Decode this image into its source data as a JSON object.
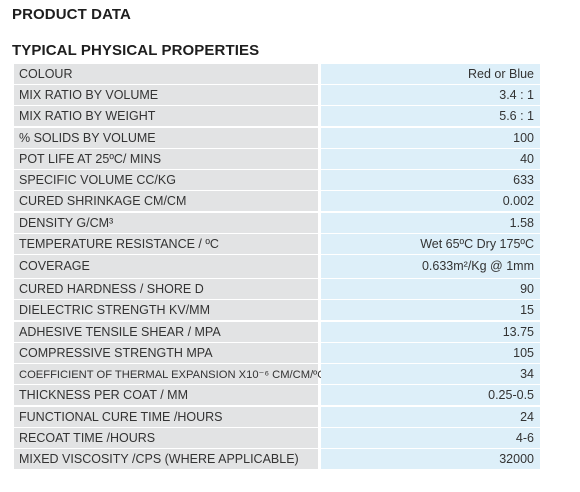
{
  "heading": "PRODUCT DATA",
  "subheading": "TYPICAL PHYSICAL PROPERTIES",
  "colors": {
    "label_bg": "#e2e3e4",
    "value_bg": "#ddeff9"
  },
  "rows": [
    {
      "label": "COLOUR",
      "value": "Red or Blue"
    },
    {
      "label": "MIX RATIO BY VOLUME",
      "value": "3.4 : 1"
    },
    {
      "label": "MIX RATIO BY WEIGHT",
      "value": "5.6 : 1"
    },
    {
      "label": "% SOLIDS BY VOLUME",
      "value": "100"
    },
    {
      "label": "POT LIFE AT 25ºC/ MINS",
      "value": "40"
    },
    {
      "label": "SPECIFIC VOLUME CC/KG",
      "value": "633"
    },
    {
      "label": "CURED SHRINKAGE CM/CM",
      "value": "0.002"
    },
    {
      "label": "DENSITY G/CM³",
      "value": "1.58"
    },
    {
      "label": "TEMPERATURE RESISTANCE / ºC",
      "value": "Wet 65ºC Dry 175ºC"
    },
    {
      "label": "COVERAGE",
      "value": "0.633m²/Kg @ 1mm"
    },
    {
      "label": "CURED HARDNESS / SHORE D",
      "value": "90"
    },
    {
      "label": "DIELECTRIC STRENGTH KV/MM",
      "value": "15"
    },
    {
      "label": "ADHESIVE TENSILE SHEAR / MPA",
      "value": "13.75"
    },
    {
      "label": "COMPRESSIVE STRENGTH MPA",
      "value": "105"
    },
    {
      "label": "COEFFICIENT OF THERMAL EXPANSION X10⁻⁶ CM/CM/ºC",
      "value": "34"
    },
    {
      "label": "THICKNESS PER COAT / MM",
      "value": "0.25-0.5"
    },
    {
      "label": "FUNCTIONAL CURE TIME /HOURS",
      "value": "24"
    },
    {
      "label": "RECOAT TIME /HOURS",
      "value": "4-6"
    },
    {
      "label": "MIXED VISCOSITY /CPS (WHERE APPLICABLE)",
      "value": "32000"
    }
  ]
}
